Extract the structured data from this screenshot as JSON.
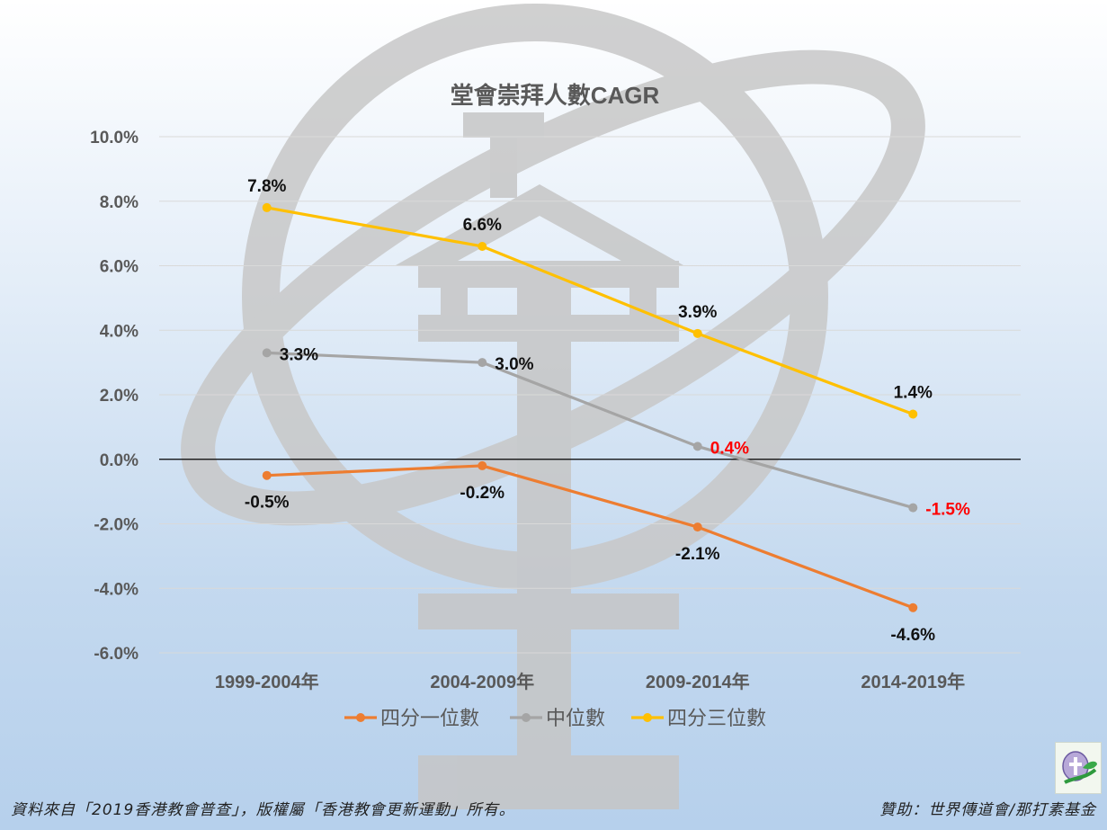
{
  "chart_data": {
    "type": "line",
    "title": "堂會崇拜人數CAGR",
    "categories": [
      "1999-2004年",
      "2004-2009年",
      "2009-2014年",
      "2014-2019年"
    ],
    "yticks": [
      "10.0%",
      "8.0%",
      "6.0%",
      "4.0%",
      "2.0%",
      "0.0%",
      "-2.0%",
      "-4.0%",
      "-6.0%"
    ],
    "ylim": [
      -6,
      10
    ],
    "grid": true,
    "legend_position": "bottom",
    "series": [
      {
        "name": "四分一位數",
        "values": [
          -0.5,
          -0.2,
          -2.1,
          -4.6
        ],
        "labels": [
          "-0.5%",
          "-0.2%",
          "-2.1%",
          "-4.6%"
        ],
        "color": "#ed7d31"
      },
      {
        "name": "中位數",
        "values": [
          3.3,
          3.0,
          0.4,
          -1.5
        ],
        "labels": [
          "3.3%",
          "3.0%",
          "0.4%",
          "-1.5%"
        ],
        "color": "#a5a5a5"
      },
      {
        "name": "四分三位數",
        "values": [
          7.8,
          6.6,
          3.9,
          1.4
        ],
        "labels": [
          "7.8%",
          "6.6%",
          "3.9%",
          "1.4%"
        ],
        "color": "#ffc000"
      }
    ],
    "label_colors": {
      "default": "#111111",
      "highlight": "#ff0000"
    }
  },
  "footer": {
    "source": "資料來自「2019香港教會普查」，版權屬「香港教會更新運動」所有。",
    "sponsor": "贊助：世界傳道會/那打素基金"
  }
}
